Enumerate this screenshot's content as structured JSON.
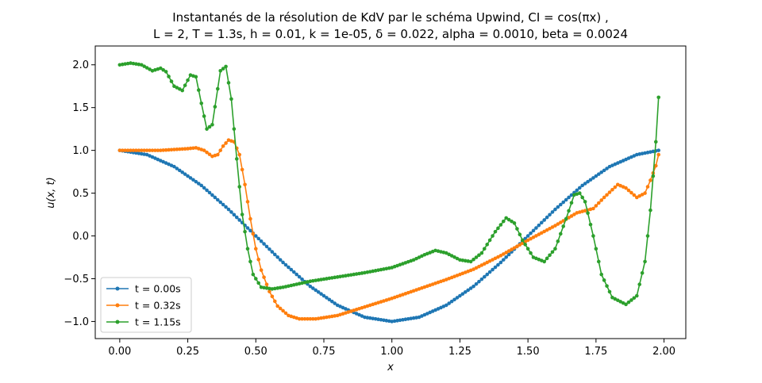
{
  "chart_data": {
    "type": "line",
    "title": "Instantanés de la résolution de KdV par le schéma Upwind, CI = cos(πx) ,",
    "subtitle": "L = 2, T = 1.3s, h = 0.01, k = 1e-05, δ = 0.022,  alpha = 0.0010, beta = 0.0024",
    "xlabel": "x",
    "ylabel": "u(x, t)",
    "xlim": [
      -0.09,
      2.08
    ],
    "ylim": [
      -1.2,
      2.22
    ],
    "xticks": [
      "0.00",
      "0.25",
      "0.50",
      "0.75",
      "1.00",
      "1.25",
      "1.50",
      "1.75",
      "2.00"
    ],
    "yticks": [
      "−1.0",
      "−0.5",
      "0.0",
      "0.5",
      "1.0",
      "1.5",
      "2.0"
    ],
    "grid": false,
    "legend_position": "lower-left",
    "series": [
      {
        "name": "t = 0.00s",
        "color": "#1f77b4",
        "points": [
          [
            0.0,
            1.0
          ],
          [
            0.1,
            0.95
          ],
          [
            0.2,
            0.81
          ],
          [
            0.3,
            0.59
          ],
          [
            0.4,
            0.31
          ],
          [
            0.5,
            0.0
          ],
          [
            0.6,
            -0.31
          ],
          [
            0.7,
            -0.59
          ],
          [
            0.8,
            -0.81
          ],
          [
            0.9,
            -0.95
          ],
          [
            1.0,
            -1.0
          ],
          [
            1.1,
            -0.95
          ],
          [
            1.2,
            -0.81
          ],
          [
            1.3,
            -0.59
          ],
          [
            1.4,
            -0.31
          ],
          [
            1.5,
            0.0
          ],
          [
            1.6,
            0.31
          ],
          [
            1.7,
            0.59
          ],
          [
            1.8,
            0.81
          ],
          [
            1.9,
            0.95
          ],
          [
            1.98,
            1.0
          ]
        ]
      },
      {
        "name": "t = 0.32s",
        "color": "#ff7f0e",
        "points": [
          [
            0.0,
            1.0
          ],
          [
            0.1,
            1.0
          ],
          [
            0.15,
            1.0
          ],
          [
            0.2,
            1.01
          ],
          [
            0.25,
            1.02
          ],
          [
            0.28,
            1.03
          ],
          [
            0.31,
            1.0
          ],
          [
            0.34,
            0.93
          ],
          [
            0.36,
            0.95
          ],
          [
            0.38,
            1.05
          ],
          [
            0.4,
            1.12
          ],
          [
            0.42,
            1.1
          ],
          [
            0.44,
            0.95
          ],
          [
            0.46,
            0.6
          ],
          [
            0.48,
            0.2
          ],
          [
            0.5,
            -0.15
          ],
          [
            0.52,
            -0.4
          ],
          [
            0.55,
            -0.65
          ],
          [
            0.58,
            -0.82
          ],
          [
            0.62,
            -0.93
          ],
          [
            0.66,
            -0.97
          ],
          [
            0.72,
            -0.97
          ],
          [
            0.8,
            -0.93
          ],
          [
            0.9,
            -0.83
          ],
          [
            1.0,
            -0.73
          ],
          [
            1.1,
            -0.62
          ],
          [
            1.2,
            -0.51
          ],
          [
            1.3,
            -0.39
          ],
          [
            1.4,
            -0.23
          ],
          [
            1.5,
            -0.05
          ],
          [
            1.6,
            0.12
          ],
          [
            1.68,
            0.27
          ],
          [
            1.74,
            0.32
          ],
          [
            1.78,
            0.45
          ],
          [
            1.83,
            0.6
          ],
          [
            1.86,
            0.56
          ],
          [
            1.9,
            0.45
          ],
          [
            1.93,
            0.5
          ],
          [
            1.95,
            0.65
          ],
          [
            1.97,
            0.82
          ],
          [
            1.98,
            0.95
          ]
        ]
      },
      {
        "name": "t = 1.15s",
        "color": "#2ca02c",
        "points": [
          [
            0.0,
            2.0
          ],
          [
            0.04,
            2.02
          ],
          [
            0.08,
            2.0
          ],
          [
            0.12,
            1.93
          ],
          [
            0.15,
            1.96
          ],
          [
            0.17,
            1.92
          ],
          [
            0.2,
            1.75
          ],
          [
            0.23,
            1.7
          ],
          [
            0.26,
            1.88
          ],
          [
            0.28,
            1.86
          ],
          [
            0.3,
            1.55
          ],
          [
            0.32,
            1.25
          ],
          [
            0.34,
            1.3
          ],
          [
            0.37,
            1.93
          ],
          [
            0.39,
            1.98
          ],
          [
            0.41,
            1.6
          ],
          [
            0.43,
            0.9
          ],
          [
            0.45,
            0.25
          ],
          [
            0.47,
            -0.15
          ],
          [
            0.49,
            -0.45
          ],
          [
            0.52,
            -0.6
          ],
          [
            0.56,
            -0.62
          ],
          [
            0.6,
            -0.6
          ],
          [
            0.7,
            -0.53
          ],
          [
            0.8,
            -0.48
          ],
          [
            0.9,
            -0.43
          ],
          [
            1.0,
            -0.37
          ],
          [
            1.08,
            -0.28
          ],
          [
            1.12,
            -0.22
          ],
          [
            1.16,
            -0.17
          ],
          [
            1.2,
            -0.2
          ],
          [
            1.25,
            -0.28
          ],
          [
            1.29,
            -0.3
          ],
          [
            1.33,
            -0.2
          ],
          [
            1.38,
            0.05
          ],
          [
            1.42,
            0.21
          ],
          [
            1.45,
            0.15
          ],
          [
            1.48,
            -0.05
          ],
          [
            1.52,
            -0.25
          ],
          [
            1.56,
            -0.3
          ],
          [
            1.6,
            -0.15
          ],
          [
            1.64,
            0.2
          ],
          [
            1.67,
            0.48
          ],
          [
            1.69,
            0.5
          ],
          [
            1.71,
            0.4
          ],
          [
            1.74,
            0.0
          ],
          [
            1.77,
            -0.45
          ],
          [
            1.81,
            -0.72
          ],
          [
            1.86,
            -0.8
          ],
          [
            1.9,
            -0.7
          ],
          [
            1.93,
            -0.3
          ],
          [
            1.95,
            0.3
          ],
          [
            1.97,
            1.1
          ],
          [
            1.98,
            1.62
          ]
        ]
      }
    ]
  }
}
